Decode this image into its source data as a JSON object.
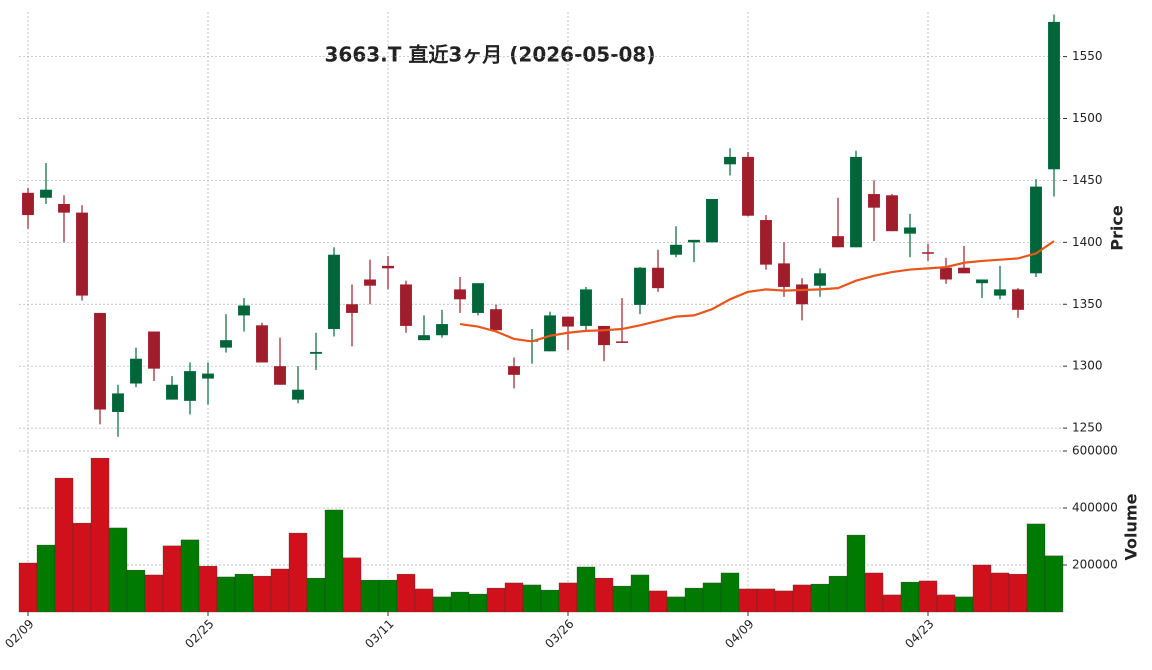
{
  "chart_data": {
    "type": "candlestick",
    "title": "3663.T  直近3ヶ月  (2026-05-08)",
    "y_label": "Price",
    "y2_label": "Volume",
    "categories": [
      "02/09",
      null,
      null,
      null,
      null,
      null,
      null,
      null,
      null,
      null,
      "02/25",
      null,
      null,
      null,
      null,
      null,
      null,
      null,
      null,
      null,
      "03/11",
      null,
      null,
      null,
      null,
      null,
      null,
      null,
      null,
      null,
      "03/26",
      null,
      null,
      null,
      null,
      null,
      null,
      null,
      null,
      null,
      "04/09",
      null,
      null,
      null,
      null,
      null,
      null,
      null,
      null,
      null,
      "04/23",
      null,
      null,
      null,
      null,
      null,
      null,
      null
    ],
    "open": [
      1440,
      1436,
      1431,
      1424,
      1343,
      1263,
      1286,
      1328,
      1273,
      1272,
      1290,
      1315,
      1341,
      1333,
      1300,
      1273,
      1310,
      1330,
      1350,
      1370,
      1381,
      1366,
      1321,
      1325,
      1362,
      1343,
      1346,
      1300,
      1320,
      1312,
      1340,
      1332.5,
      1332.5,
      1320,
      1349.5,
      1379.5,
      1390,
      1400,
      1400,
      1463,
      1469,
      1418,
      1383,
      1366,
      1365,
      1405,
      1396,
      1439,
      1438,
      1407,
      1392,
      1379.5,
      1379.5,
      1367,
      1357,
      1362,
      1375,
      1459
    ],
    "high": [
      1444,
      1464,
      1438,
      1430,
      1343,
      1285,
      1315,
      1328,
      1292,
      1303,
      1303,
      1342,
      1355,
      1335,
      1323,
      1300,
      1327,
      1396,
      1366,
      1386,
      1389,
      1369,
      1341,
      1345.5,
      1372,
      1367,
      1349.5,
      1307,
      1330,
      1344,
      1340,
      1364,
      1332.5,
      1355,
      1380,
      1394,
      1413,
      1402,
      1435,
      1476,
      1473,
      1422,
      1400,
      1371,
      1379,
      1436,
      1474,
      1450,
      1439,
      1423,
      1399,
      1387.5,
      1397,
      1370,
      1381,
      1363,
      1451,
      1584
    ],
    "low": [
      1411,
      1431,
      1400,
      1353,
      1253,
      1243,
      1283,
      1288,
      1273,
      1261,
      1269,
      1311,
      1328,
      1303,
      1285,
      1270,
      1297,
      1324,
      1316,
      1350,
      1362,
      1327,
      1321,
      1323,
      1343,
      1341,
      1329,
      1282,
      1302,
      1312,
      1313,
      1329,
      1304,
      1319,
      1342,
      1360,
      1388,
      1384,
      1400,
      1454,
      1421,
      1378,
      1356,
      1337,
      1356,
      1396,
      1396,
      1401,
      1409,
      1388,
      1385,
      1366.5,
      1375,
      1355,
      1354,
      1339,
      1372,
      1437
    ],
    "close": [
      1422,
      1442.5,
      1424,
      1357,
      1265,
      1278,
      1306,
      1298,
      1285,
      1296,
      1294,
      1321,
      1349,
      1303,
      1285,
      1281,
      1311.5,
      1390,
      1343,
      1365,
      1379,
      1332.5,
      1325,
      1334,
      1354,
      1367,
      1329,
      1293,
      1321,
      1341,
      1332,
      1362,
      1317,
      1319,
      1379.5,
      1363,
      1398,
      1402,
      1435,
      1469,
      1421.5,
      1382,
      1364,
      1350,
      1375,
      1396,
      1469,
      1428,
      1409,
      1412,
      1391,
      1370,
      1375,
      1370,
      1362,
      1345.5,
      1445,
      1578
    ],
    "up_color": "#00663a",
    "down_color": "#a01d2b",
    "ma": {
      "color": "#e8561c",
      "values": [
        null,
        null,
        null,
        null,
        null,
        null,
        null,
        null,
        null,
        null,
        null,
        null,
        null,
        null,
        null,
        null,
        null,
        null,
        null,
        null,
        null,
        null,
        null,
        null,
        1334,
        1332,
        1328,
        1322,
        1320,
        1324.5,
        1327,
        1328.5,
        1329,
        1330,
        1333,
        1336.5,
        1340,
        1341,
        1346,
        1354,
        1360,
        1362,
        1361,
        1361.5,
        1362,
        1363,
        1369,
        1373,
        1376,
        1378,
        1379,
        1380,
        1383.5,
        1385,
        1386,
        1387,
        1391,
        1401
      ]
    },
    "volume": {
      "values": [
        207000,
        270000,
        505000,
        347000,
        575000,
        330000,
        182000,
        165000,
        267000,
        288000,
        196000,
        158000,
        168000,
        161000,
        186000,
        312000,
        154000,
        393000,
        225000,
        147000,
        147000,
        168000,
        116000,
        88000,
        105000,
        98000,
        119000,
        137000,
        130000,
        112000,
        137000,
        193000,
        154000,
        126000,
        165000,
        109000,
        88000,
        119000,
        137000,
        172000,
        116000,
        116000,
        109000,
        130000,
        133000,
        161000,
        305000,
        172000,
        95000,
        140000,
        144000,
        95000,
        88000,
        200000,
        172000,
        168000,
        344000,
        232000
      ],
      "colors": [
        "#d0101b",
        "#007a00",
        "#d0101b",
        "#d0101b",
        "#d0101b",
        "#007a00",
        "#007a00",
        "#d0101b",
        "#d0101b",
        "#007a00",
        "#d0101b",
        "#007a00",
        "#007a00",
        "#d0101b",
        "#d0101b",
        "#d0101b",
        "#007a00",
        "#007a00",
        "#d0101b",
        "#007a00",
        "#007a00",
        "#d0101b",
        "#d0101b",
        "#007a00",
        "#007a00",
        "#007a00",
        "#d0101b",
        "#d0101b",
        "#007a00",
        "#007a00",
        "#d0101b",
        "#007a00",
        "#d0101b",
        "#007a00",
        "#007a00",
        "#d0101b",
        "#007a00",
        "#007a00",
        "#007a00",
        "#007a00",
        "#d0101b",
        "#d0101b",
        "#d0101b",
        "#d0101b",
        "#007a00",
        "#007a00",
        "#007a00",
        "#d0101b",
        "#d0101b",
        "#007a00",
        "#d0101b",
        "#d0101b",
        "#007a00",
        "#d0101b",
        "#d0101b",
        "#d0101b",
        "#007a00",
        "#007a00"
      ]
    },
    "ylim": [
      1242,
      1586
    ],
    "yticks": [
      1250,
      1300,
      1350,
      1400,
      1450,
      1500,
      1550
    ],
    "y2lim": [
      35000,
      628000
    ],
    "y2ticks": [
      200000,
      400000,
      600000
    ],
    "grid": true
  }
}
